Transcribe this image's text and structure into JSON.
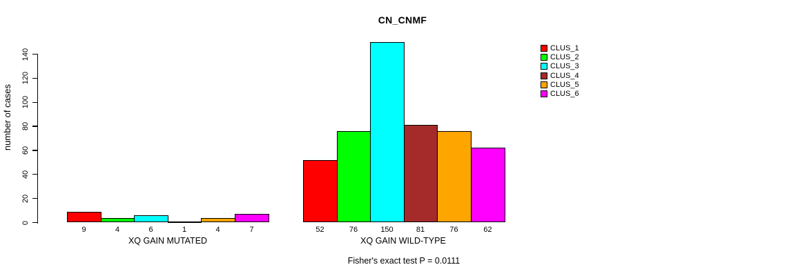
{
  "title": "CN_CNMF",
  "y_axis": {
    "label": "number of cases",
    "ticks": [
      0,
      20,
      40,
      60,
      80,
      100,
      120,
      140
    ]
  },
  "footer": "Fisher's exact test P = 0.0111",
  "legend": {
    "entries": [
      {
        "label": "CLUS_1",
        "color": "#FF0000"
      },
      {
        "label": "CLUS_2",
        "color": "#00FF00"
      },
      {
        "label": "CLUS_3",
        "color": "#00FFFF"
      },
      {
        "label": "CLUS_4",
        "color": "#A52A2A"
      },
      {
        "label": "CLUS_5",
        "color": "#FFA500"
      },
      {
        "label": "CLUS_6",
        "color": "#FF00FF"
      }
    ]
  },
  "chart_data": {
    "type": "bar",
    "title": "CN_CNMF",
    "ylabel": "number of cases",
    "xlabel": "",
    "ylim": [
      0,
      140
    ],
    "yticks": [
      0,
      20,
      40,
      60,
      80,
      100,
      120,
      140
    ],
    "grid": false,
    "legend_position": "right-outside",
    "legend_entries": [
      "CLUS_1",
      "CLUS_2",
      "CLUS_3",
      "CLUS_4",
      "CLUS_5",
      "CLUS_6"
    ],
    "series_colors": [
      "#FF0000",
      "#00FF00",
      "#00FFFF",
      "#A52A2A",
      "#FFA500",
      "#FF00FF"
    ],
    "groups": [
      {
        "label": "XQ GAIN MUTATED",
        "values": [
          9,
          4,
          6,
          1,
          4,
          7
        ],
        "value_labels": [
          "9",
          "4",
          "6",
          "1",
          "4",
          "7"
        ]
      },
      {
        "label": "XQ GAIN WILD-TYPE",
        "values": [
          52,
          76,
          150,
          81,
          76,
          62
        ],
        "value_labels": [
          "52",
          "76",
          "150",
          "81",
          "76",
          "62"
        ]
      }
    ],
    "annotation": "Fisher's exact test P = 0.0111"
  }
}
